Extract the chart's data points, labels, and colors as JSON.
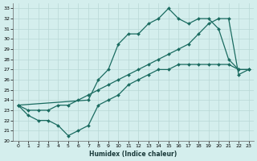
{
  "xlabel": "Humidex (Indice chaleur)",
  "bg_color": "#d4eeed",
  "grid_color": "#b8d8d6",
  "line_color": "#1a6b60",
  "xlim": [
    -0.5,
    23.5
  ],
  "ylim": [
    20,
    33.5
  ],
  "xticks": [
    0,
    1,
    2,
    3,
    4,
    5,
    6,
    7,
    8,
    9,
    10,
    11,
    12,
    13,
    14,
    15,
    16,
    17,
    18,
    19,
    20,
    21,
    22,
    23
  ],
  "yticks": [
    20,
    21,
    22,
    23,
    24,
    25,
    26,
    27,
    28,
    29,
    30,
    31,
    32,
    33
  ],
  "line1_x": [
    0,
    1,
    2,
    3,
    4,
    5,
    6,
    7,
    8,
    9,
    10,
    11,
    12,
    13,
    14,
    15,
    16,
    17,
    18,
    19,
    20,
    21,
    22,
    23
  ],
  "line1_y": [
    23.5,
    22.5,
    22.0,
    22.0,
    21.5,
    20.5,
    21.0,
    21.5,
    23.5,
    24.0,
    24.5,
    25.5,
    26.0,
    26.5,
    27.0,
    27.0,
    27.5,
    27.5,
    27.5,
    27.5,
    27.5,
    27.5,
    27.0,
    27.0
  ],
  "line2_x": [
    0,
    7,
    8,
    9,
    10,
    11,
    12,
    13,
    14,
    15,
    16,
    17,
    18,
    19,
    20,
    21,
    22,
    23
  ],
  "line2_y": [
    23.5,
    24.0,
    26.0,
    27.0,
    29.5,
    30.5,
    30.5,
    31.5,
    32.0,
    33.0,
    32.0,
    31.5,
    32.0,
    32.0,
    31.0,
    28.0,
    27.0,
    27.0
  ],
  "line3_x": [
    0,
    1,
    2,
    3,
    4,
    5,
    6,
    7,
    8,
    9,
    10,
    11,
    12,
    13,
    14,
    15,
    16,
    17,
    18,
    19,
    20,
    21,
    22,
    23
  ],
  "line3_y": [
    23.5,
    23.0,
    23.0,
    23.0,
    23.5,
    23.5,
    24.0,
    24.5,
    25.0,
    25.5,
    26.0,
    26.5,
    27.0,
    27.5,
    28.0,
    28.5,
    29.0,
    29.5,
    30.5,
    31.5,
    32.0,
    32.0,
    26.5,
    27.0
  ]
}
